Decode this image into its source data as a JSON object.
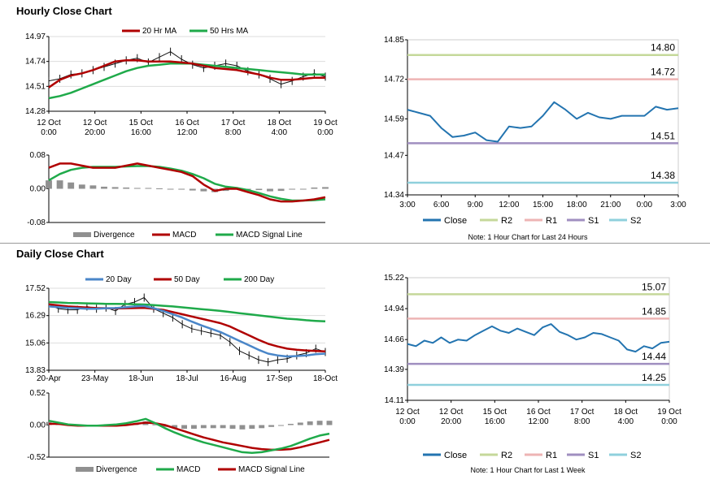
{
  "sections": {
    "hourly_title": "Hourly Close Chart",
    "daily_title": "Daily Close Chart"
  },
  "colors": {
    "red": "#b00000",
    "green": "#1faa4a",
    "blue": "#4a86c8",
    "close": "#2374b0",
    "r2": "#c5d89a",
    "r1": "#eeb4b4",
    "s1": "#a08fc0",
    "s2": "#8fd0dc",
    "gray": "#909090"
  },
  "notes": {
    "hourly_levels": "Note: 1 Hour Chart for Last 24 Hours",
    "daily_levels": "Note: 1 Hour Chart for Last 1 Week"
  },
  "chart_data": [
    {
      "id": "hourly_price",
      "type": "line",
      "title": "Hourly Close Chart",
      "legend": [
        "20 Hr MA",
        "50 Hrs MA"
      ],
      "x_labels": [
        "12 Oct\n0:00",
        "12 Oct\n20:00",
        "15 Oct\n16:00",
        "16 Oct\n12:00",
        "17 Oct\n8:00",
        "18 Oct\n4:00",
        "19 Oct\n0:00"
      ],
      "y_ticks": [
        "14.97",
        "14.74",
        "14.51",
        "14.28"
      ],
      "ylim": [
        14.28,
        14.97
      ],
      "series": [
        {
          "name": "Price",
          "values": [
            14.56,
            14.58,
            14.62,
            14.63,
            14.66,
            14.69,
            14.72,
            14.75,
            14.77,
            14.73,
            14.78,
            14.83,
            14.76,
            14.71,
            14.68,
            14.7,
            14.72,
            14.7,
            14.65,
            14.62,
            14.58,
            14.53,
            14.56,
            14.6,
            14.63,
            14.6
          ]
        },
        {
          "name": "20 Hr MA",
          "values": [
            14.5,
            14.57,
            14.61,
            14.63,
            14.66,
            14.7,
            14.74,
            14.75,
            14.75,
            14.74,
            14.74,
            14.74,
            14.73,
            14.72,
            14.7,
            14.68,
            14.67,
            14.66,
            14.64,
            14.62,
            14.59,
            14.57,
            14.57,
            14.58,
            14.59,
            14.59
          ]
        },
        {
          "name": "50 Hrs MA",
          "values": [
            14.4,
            14.42,
            14.45,
            14.49,
            14.53,
            14.57,
            14.61,
            14.65,
            14.68,
            14.7,
            14.71,
            14.72,
            14.72,
            14.72,
            14.71,
            14.7,
            14.69,
            14.68,
            14.67,
            14.66,
            14.65,
            14.64,
            14.63,
            14.62,
            14.62,
            14.62
          ]
        }
      ]
    },
    {
      "id": "hourly_macd",
      "type": "line",
      "legend": [
        "Divergence",
        "MACD",
        "MACD Signal Line"
      ],
      "y_ticks": [
        "0.08",
        "0.00",
        "-0.08"
      ],
      "ylim": [
        -0.08,
        0.08
      ],
      "series": [
        {
          "name": "Divergence",
          "values": [
            0.02,
            0.02,
            0.015,
            0.01,
            0.008,
            0.005,
            0.004,
            0.003,
            0.002,
            0.002,
            0.001,
            0.0,
            -0.002,
            -0.004,
            -0.006,
            -0.008,
            -0.005,
            -0.002,
            0.0,
            -0.003,
            -0.006,
            -0.005,
            -0.002,
            0.0,
            0.003,
            0.004
          ]
        },
        {
          "name": "MACD",
          "values": [
            0.05,
            0.06,
            0.06,
            0.055,
            0.05,
            0.05,
            0.05,
            0.055,
            0.06,
            0.055,
            0.05,
            0.045,
            0.04,
            0.03,
            0.01,
            -0.005,
            0.0,
            0.0,
            -0.008,
            -0.015,
            -0.025,
            -0.03,
            -0.03,
            -0.028,
            -0.025,
            -0.02
          ]
        },
        {
          "name": "MACD Signal Line",
          "values": [
            0.02,
            0.035,
            0.045,
            0.05,
            0.052,
            0.052,
            0.052,
            0.053,
            0.054,
            0.054,
            0.052,
            0.048,
            0.043,
            0.035,
            0.025,
            0.012,
            0.005,
            0.002,
            -0.003,
            -0.01,
            -0.018,
            -0.024,
            -0.028,
            -0.028,
            -0.027,
            -0.025
          ]
        }
      ]
    },
    {
      "id": "hourly_levels",
      "type": "line",
      "x_labels": [
        "3:00",
        "6:00",
        "9:00",
        "12:00",
        "15:00",
        "18:00",
        "21:00",
        "0:00",
        "3:00"
      ],
      "y_ticks": [
        "14.85",
        "14.72",
        "14.59",
        "14.47",
        "14.34"
      ],
      "ylim": [
        14.34,
        14.85
      ],
      "legend": [
        "Close",
        "R2",
        "R1",
        "S1",
        "S2"
      ],
      "levels": {
        "R2": 14.8,
        "R1": 14.72,
        "S1": 14.51,
        "S2": 14.38
      },
      "level_labels": {
        "R2": "14.80",
        "R1": "14.72",
        "S1": "14.51",
        "S2": "14.38"
      },
      "series": [
        {
          "name": "Close",
          "values": [
            14.62,
            14.61,
            14.6,
            14.56,
            14.53,
            14.535,
            14.545,
            14.52,
            14.515,
            14.565,
            14.56,
            14.565,
            14.6,
            14.645,
            14.62,
            14.59,
            14.61,
            14.595,
            14.59,
            14.6,
            14.6,
            14.6,
            14.63,
            14.62,
            14.625
          ]
        }
      ]
    },
    {
      "id": "daily_price",
      "type": "line",
      "title": "Daily Close Chart",
      "legend": [
        "20 Day",
        "50 Day",
        "200 Day"
      ],
      "x_labels": [
        "20-Apr",
        "23-May",
        "18-Jun",
        "18-Jul",
        "16-Aug",
        "17-Sep",
        "18-Oct"
      ],
      "y_ticks": [
        "17.52",
        "16.29",
        "15.06",
        "13.83"
      ],
      "ylim": [
        13.83,
        17.52
      ],
      "series": [
        {
          "name": "Price",
          "values": [
            16.8,
            16.6,
            16.55,
            16.55,
            16.7,
            16.6,
            16.65,
            16.5,
            16.8,
            16.9,
            17.1,
            16.6,
            16.4,
            16.2,
            15.9,
            15.7,
            15.6,
            15.5,
            15.4,
            15.1,
            14.7,
            14.5,
            14.3,
            14.2,
            14.3,
            14.35,
            14.5,
            14.6,
            14.8,
            14.65
          ]
        },
        {
          "name": "20 Day",
          "values": [
            16.7,
            16.67,
            16.64,
            16.62,
            16.6,
            16.6,
            16.62,
            16.63,
            16.66,
            16.7,
            16.72,
            16.62,
            16.5,
            16.35,
            16.2,
            16.02,
            15.85,
            15.7,
            15.55,
            15.35,
            15.15,
            14.95,
            14.75,
            14.58,
            14.5,
            14.45,
            14.47,
            14.5,
            14.55,
            14.58
          ]
        },
        {
          "name": "50 Day",
          "values": [
            16.8,
            16.75,
            16.7,
            16.68,
            16.65,
            16.63,
            16.62,
            16.61,
            16.62,
            16.63,
            16.64,
            16.6,
            16.55,
            16.45,
            16.35,
            16.25,
            16.15,
            16.05,
            15.95,
            15.8,
            15.6,
            15.4,
            15.2,
            15.02,
            14.9,
            14.8,
            14.75,
            14.72,
            14.7,
            14.68
          ]
        },
        {
          "name": "200 Day",
          "values": [
            16.9,
            16.88,
            16.86,
            16.85,
            16.84,
            16.83,
            16.82,
            16.82,
            16.81,
            16.8,
            16.79,
            16.76,
            16.73,
            16.7,
            16.66,
            16.62,
            16.58,
            16.54,
            16.5,
            16.45,
            16.4,
            16.35,
            16.3,
            16.25,
            16.2,
            16.15,
            16.12,
            16.08,
            16.05,
            16.03
          ]
        }
      ]
    },
    {
      "id": "daily_macd",
      "type": "line",
      "legend": [
        "Divergence",
        "MACD",
        "MACD Signal Line"
      ],
      "y_ticks": [
        "0.52",
        "0.00",
        "-0.52"
      ],
      "ylim": [
        -0.52,
        0.52
      ],
      "series": [
        {
          "name": "Divergence",
          "values": [
            0.05,
            0.02,
            0.01,
            0.0,
            -0.01,
            0.0,
            0.01,
            0.01,
            0.02,
            0.03,
            0.06,
            0.01,
            -0.03,
            -0.05,
            -0.06,
            -0.06,
            -0.05,
            -0.05,
            -0.05,
            -0.06,
            -0.07,
            -0.06,
            -0.05,
            -0.03,
            0.0,
            0.02,
            0.04,
            0.06,
            0.07,
            0.07
          ]
        },
        {
          "name": "MACD",
          "values": [
            0.07,
            0.04,
            0.01,
            0.0,
            -0.01,
            -0.01,
            0.0,
            0.01,
            0.03,
            0.06,
            0.1,
            0.03,
            -0.05,
            -0.12,
            -0.18,
            -0.23,
            -0.28,
            -0.32,
            -0.36,
            -0.4,
            -0.44,
            -0.45,
            -0.44,
            -0.41,
            -0.38,
            -0.34,
            -0.28,
            -0.22,
            -0.17,
            -0.14
          ]
        },
        {
          "name": "MACD Signal Line",
          "values": [
            0.02,
            0.02,
            0.0,
            -0.01,
            -0.01,
            -0.01,
            -0.01,
            -0.01,
            0.0,
            0.02,
            0.04,
            0.03,
            0.0,
            -0.05,
            -0.1,
            -0.15,
            -0.2,
            -0.24,
            -0.28,
            -0.31,
            -0.34,
            -0.37,
            -0.39,
            -0.4,
            -0.4,
            -0.39,
            -0.36,
            -0.32,
            -0.28,
            -0.24
          ]
        }
      ]
    },
    {
      "id": "daily_levels",
      "type": "line",
      "x_labels": [
        "12 Oct\n0:00",
        "12 Oct\n20:00",
        "15 Oct\n16:00",
        "16 Oct\n12:00",
        "17 Oct\n8:00",
        "18 Oct\n4:00",
        "19 Oct\n0:00"
      ],
      "y_ticks": [
        "15.22",
        "14.94",
        "14.66",
        "14.39",
        "14.11"
      ],
      "ylim": [
        14.11,
        15.22
      ],
      "legend": [
        "Close",
        "R2",
        "R1",
        "S1",
        "S2"
      ],
      "levels": {
        "R2": 15.07,
        "R1": 14.85,
        "S1": 14.44,
        "S2": 14.25
      },
      "level_labels": {
        "R2": "15.07",
        "R1": "14.85",
        "S1": "14.44",
        "S2": "14.25"
      },
      "series": [
        {
          "name": "Close",
          "values": [
            14.62,
            14.6,
            14.65,
            14.63,
            14.68,
            14.63,
            14.66,
            14.65,
            14.7,
            14.74,
            14.78,
            14.74,
            14.72,
            14.76,
            14.73,
            14.7,
            14.77,
            14.8,
            14.73,
            14.7,
            14.66,
            14.68,
            14.72,
            14.71,
            14.68,
            14.65,
            14.57,
            14.55,
            14.6,
            14.58,
            14.63,
            14.64
          ]
        }
      ]
    }
  ]
}
